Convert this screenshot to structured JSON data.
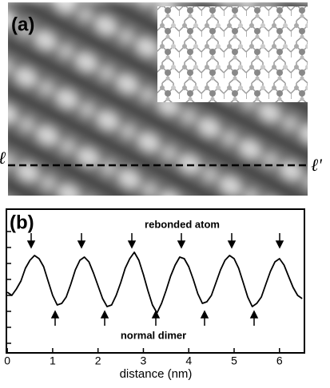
{
  "panel_a": {
    "label": "(a)",
    "line_start_label": "ℓ",
    "line_end_label": "ℓ'"
  },
  "chart_data": {
    "type": "line",
    "label": "(b)",
    "x_label": "distance (nm)",
    "annotation_top": "rebonded atom",
    "annotation_bottom": "normal dimer",
    "color": "#000000",
    "x": [
      0.0,
      0.1,
      0.2,
      0.3,
      0.4,
      0.5,
      0.6,
      0.7,
      0.8,
      0.9,
      1.0,
      1.1,
      1.2,
      1.3,
      1.4,
      1.5,
      1.6,
      1.7,
      1.8,
      1.9,
      2.0,
      2.1,
      2.2,
      2.3,
      2.4,
      2.5,
      2.6,
      2.7,
      2.8,
      2.9,
      3.0,
      3.1,
      3.2,
      3.3,
      3.4,
      3.5,
      3.6,
      3.7,
      3.8,
      3.9,
      4.0,
      4.1,
      4.2,
      4.3,
      4.4,
      4.5,
      4.6,
      4.7,
      4.8,
      4.9,
      5.0,
      5.1,
      5.2,
      5.3,
      5.4,
      5.5,
      5.6,
      5.7,
      5.8,
      5.9,
      6.0,
      6.1,
      6.2,
      6.3,
      6.4,
      6.5
    ],
    "values": [
      4.2,
      4.0,
      4.4,
      4.9,
      5.7,
      6.2,
      6.5,
      6.3,
      5.8,
      4.9,
      4.0,
      3.4,
      3.5,
      3.9,
      4.7,
      5.6,
      6.2,
      6.4,
      6.1,
      5.4,
      4.6,
      3.8,
      3.3,
      3.4,
      4.0,
      4.8,
      5.7,
      6.3,
      6.7,
      6.2,
      5.3,
      4.3,
      3.4,
      2.9,
      3.5,
      4.3,
      5.2,
      5.9,
      6.4,
      6.3,
      5.8,
      5.0,
      4.1,
      3.5,
      3.6,
      4.0,
      4.8,
      5.6,
      6.2,
      6.5,
      6.3,
      5.7,
      4.8,
      3.9,
      3.3,
      3.5,
      3.9,
      4.7,
      5.5,
      6.1,
      6.3,
      5.9,
      5.2,
      4.5,
      4.0,
      3.8
    ],
    "xlim": [
      -0.02,
      6.55
    ],
    "xticks": [
      0,
      1,
      2,
      3,
      4,
      5,
      6
    ],
    "ylim": [
      0.4,
      9.4
    ],
    "yticks": [
      1,
      2,
      3,
      4,
      5,
      6,
      7,
      8
    ]
  }
}
